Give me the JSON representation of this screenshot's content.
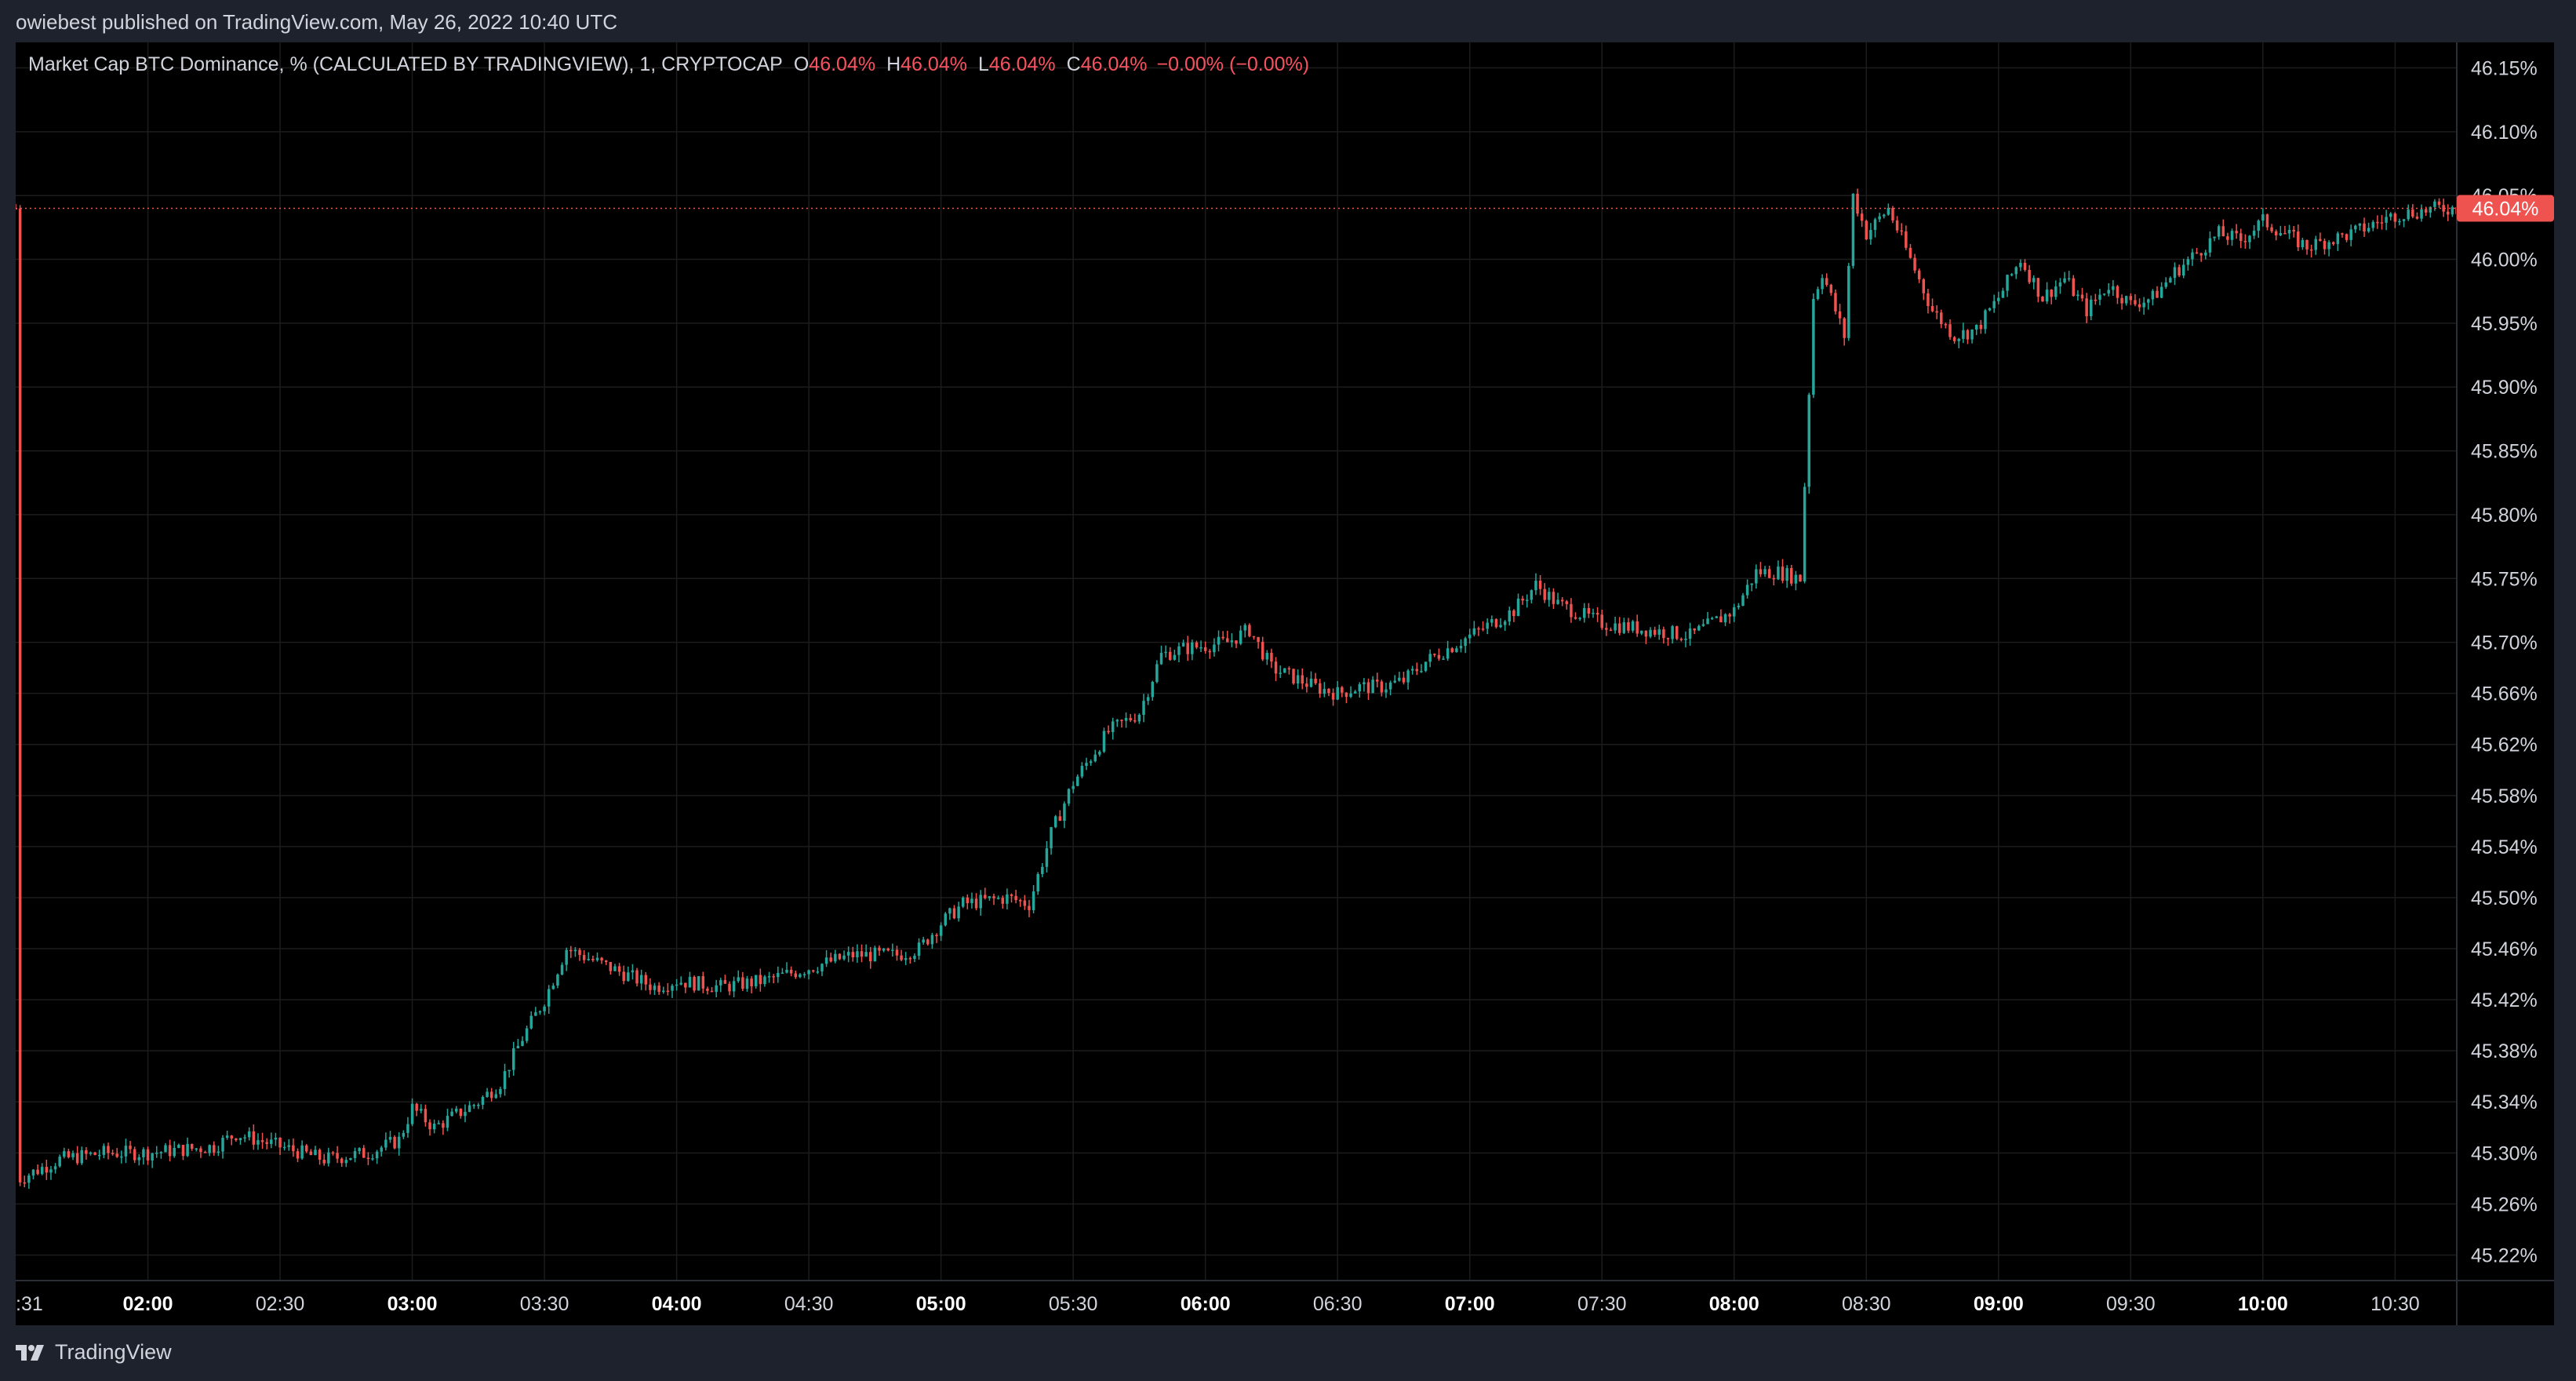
{
  "header": {
    "published_text": "owiebest published on TradingView.com, May 26, 2022 10:40 UTC"
  },
  "legend": {
    "symbol": "Market Cap BTC Dominance, % (CALCULATED BY TRADINGVIEW), 1, CRYPTOCAP",
    "open_label": "O",
    "open_value": "46.04%",
    "high_label": "H",
    "high_value": "46.04%",
    "low_label": "L",
    "low_value": "46.04%",
    "close_label": "C",
    "close_value": "46.04%",
    "change": "−0.00% (−0.00%)"
  },
  "price_badge": "46.04%",
  "footer": {
    "brand": "TradingView",
    "logo_icon": "tradingview-logo-icon"
  },
  "colors": {
    "background": "#000000",
    "panel": "#1e222d",
    "up": "#26a69a",
    "down": "#ef5350",
    "grid": "#1c1c1c",
    "text": "#d1d4dc"
  },
  "chart_data": {
    "type": "candlestick",
    "title": "Market Cap BTC Dominance, % (CALCULATED BY TRADINGVIEW), 1, CRYPTOCAP",
    "interval": "1 minute",
    "y_axis_side": "right",
    "y_ticks": [
      "46.15%",
      "46.10%",
      "46.05%",
      "46.00%",
      "45.95%",
      "45.90%",
      "45.85%",
      "45.80%",
      "45.75%",
      "45.70%",
      "45.66%",
      "45.62%",
      "45.58%",
      "45.54%",
      "45.50%",
      "45.46%",
      "45.42%",
      "45.38%",
      "45.34%",
      "45.30%",
      "45.26%",
      "45.22%"
    ],
    "x_ticks": [
      {
        "label": ":31",
        "bold": false
      },
      {
        "label": "02:00",
        "bold": true
      },
      {
        "label": "02:30",
        "bold": false
      },
      {
        "label": "03:00",
        "bold": true
      },
      {
        "label": "03:30",
        "bold": false
      },
      {
        "label": "04:00",
        "bold": true
      },
      {
        "label": "04:30",
        "bold": false
      },
      {
        "label": "05:00",
        "bold": true
      },
      {
        "label": "05:30",
        "bold": false
      },
      {
        "label": "06:00",
        "bold": true
      },
      {
        "label": "06:30",
        "bold": false
      },
      {
        "label": "07:00",
        "bold": true
      },
      {
        "label": "07:30",
        "bold": false
      },
      {
        "label": "08:00",
        "bold": true
      },
      {
        "label": "08:30",
        "bold": false
      },
      {
        "label": "09:00",
        "bold": true
      },
      {
        "label": "09:30",
        "bold": false
      },
      {
        "label": "10:00",
        "bold": true
      },
      {
        "label": "10:30",
        "bold": false
      }
    ],
    "x_range_minutes": [
      "01:30",
      "10:44"
    ],
    "y_range": [
      45.2,
      46.17
    ],
    "last_price": 46.04,
    "grid": true,
    "price_path": [
      {
        "t": "01:31",
        "v": 45.28
      },
      {
        "t": "01:40",
        "v": 45.295
      },
      {
        "t": "01:50",
        "v": 45.3
      },
      {
        "t": "02:00",
        "v": 45.3
      },
      {
        "t": "02:15",
        "v": 45.305
      },
      {
        "t": "02:20",
        "v": 45.315
      },
      {
        "t": "02:30",
        "v": 45.305
      },
      {
        "t": "02:40",
        "v": 45.295
      },
      {
        "t": "02:50",
        "v": 45.3
      },
      {
        "t": "02:57",
        "v": 45.31
      },
      {
        "t": "03:00",
        "v": 45.335
      },
      {
        "t": "03:05",
        "v": 45.32
      },
      {
        "t": "03:15",
        "v": 45.34
      },
      {
        "t": "03:20",
        "v": 45.355
      },
      {
        "t": "03:25",
        "v": 45.39
      },
      {
        "t": "03:30",
        "v": 45.42
      },
      {
        "t": "03:35",
        "v": 45.46
      },
      {
        "t": "03:45",
        "v": 45.445
      },
      {
        "t": "03:55",
        "v": 45.43
      },
      {
        "t": "04:00",
        "v": 45.435
      },
      {
        "t": "04:10",
        "v": 45.43
      },
      {
        "t": "04:20",
        "v": 45.435
      },
      {
        "t": "04:30",
        "v": 45.445
      },
      {
        "t": "04:40",
        "v": 45.455
      },
      {
        "t": "04:50",
        "v": 45.455
      },
      {
        "t": "04:55",
        "v": 45.46
      },
      {
        "t": "05:00",
        "v": 45.48
      },
      {
        "t": "05:05",
        "v": 45.495
      },
      {
        "t": "05:15",
        "v": 45.5
      },
      {
        "t": "05:20",
        "v": 45.495
      },
      {
        "t": "05:25",
        "v": 45.55
      },
      {
        "t": "05:30",
        "v": 45.59
      },
      {
        "t": "05:33",
        "v": 45.605
      },
      {
        "t": "05:38",
        "v": 45.63
      },
      {
        "t": "05:45",
        "v": 45.645
      },
      {
        "t": "05:50",
        "v": 45.69
      },
      {
        "t": "05:55",
        "v": 45.695
      },
      {
        "t": "06:05",
        "v": 45.7
      },
      {
        "t": "06:10",
        "v": 45.71
      },
      {
        "t": "06:15",
        "v": 45.68
      },
      {
        "t": "06:25",
        "v": 45.665
      },
      {
        "t": "06:30",
        "v": 45.66
      },
      {
        "t": "06:35",
        "v": 45.665
      },
      {
        "t": "06:40",
        "v": 45.665
      },
      {
        "t": "06:45",
        "v": 45.67
      },
      {
        "t": "06:50",
        "v": 45.685
      },
      {
        "t": "06:55",
        "v": 45.695
      },
      {
        "t": "07:00",
        "v": 45.705
      },
      {
        "t": "07:10",
        "v": 45.725
      },
      {
        "t": "07:15",
        "v": 45.745
      },
      {
        "t": "07:20",
        "v": 45.73
      },
      {
        "t": "07:30",
        "v": 45.715
      },
      {
        "t": "07:40",
        "v": 45.71
      },
      {
        "t": "07:50",
        "v": 45.705
      },
      {
        "t": "08:00",
        "v": 45.725
      },
      {
        "t": "08:05",
        "v": 45.755
      },
      {
        "t": "08:10",
        "v": 45.755
      },
      {
        "t": "08:15",
        "v": 45.75
      },
      {
        "t": "08:18",
        "v": 45.97
      },
      {
        "t": "08:20",
        "v": 45.99
      },
      {
        "t": "08:25",
        "v": 45.94
      },
      {
        "t": "08:27",
        "v": 46.05
      },
      {
        "t": "08:30",
        "v": 46.02
      },
      {
        "t": "08:35",
        "v": 46.04
      },
      {
        "t": "08:40",
        "v": 46.0
      },
      {
        "t": "08:45",
        "v": 45.96
      },
      {
        "t": "08:50",
        "v": 45.94
      },
      {
        "t": "08:55",
        "v": 45.945
      },
      {
        "t": "09:00",
        "v": 45.97
      },
      {
        "t": "09:05",
        "v": 46.0
      },
      {
        "t": "09:10",
        "v": 45.97
      },
      {
        "t": "09:15",
        "v": 45.985
      },
      {
        "t": "09:20",
        "v": 45.96
      },
      {
        "t": "09:25",
        "v": 45.98
      },
      {
        "t": "09:30",
        "v": 45.965
      },
      {
        "t": "09:35",
        "v": 45.97
      },
      {
        "t": "09:40",
        "v": 45.99
      },
      {
        "t": "09:45",
        "v": 46.005
      },
      {
        "t": "09:50",
        "v": 46.02
      },
      {
        "t": "09:55",
        "v": 46.015
      },
      {
        "t": "10:00",
        "v": 46.03
      },
      {
        "t": "10:05",
        "v": 46.02
      },
      {
        "t": "10:10",
        "v": 46.01
      },
      {
        "t": "10:20",
        "v": 46.02
      },
      {
        "t": "10:30",
        "v": 46.035
      },
      {
        "t": "10:40",
        "v": 46.04
      }
    ]
  }
}
